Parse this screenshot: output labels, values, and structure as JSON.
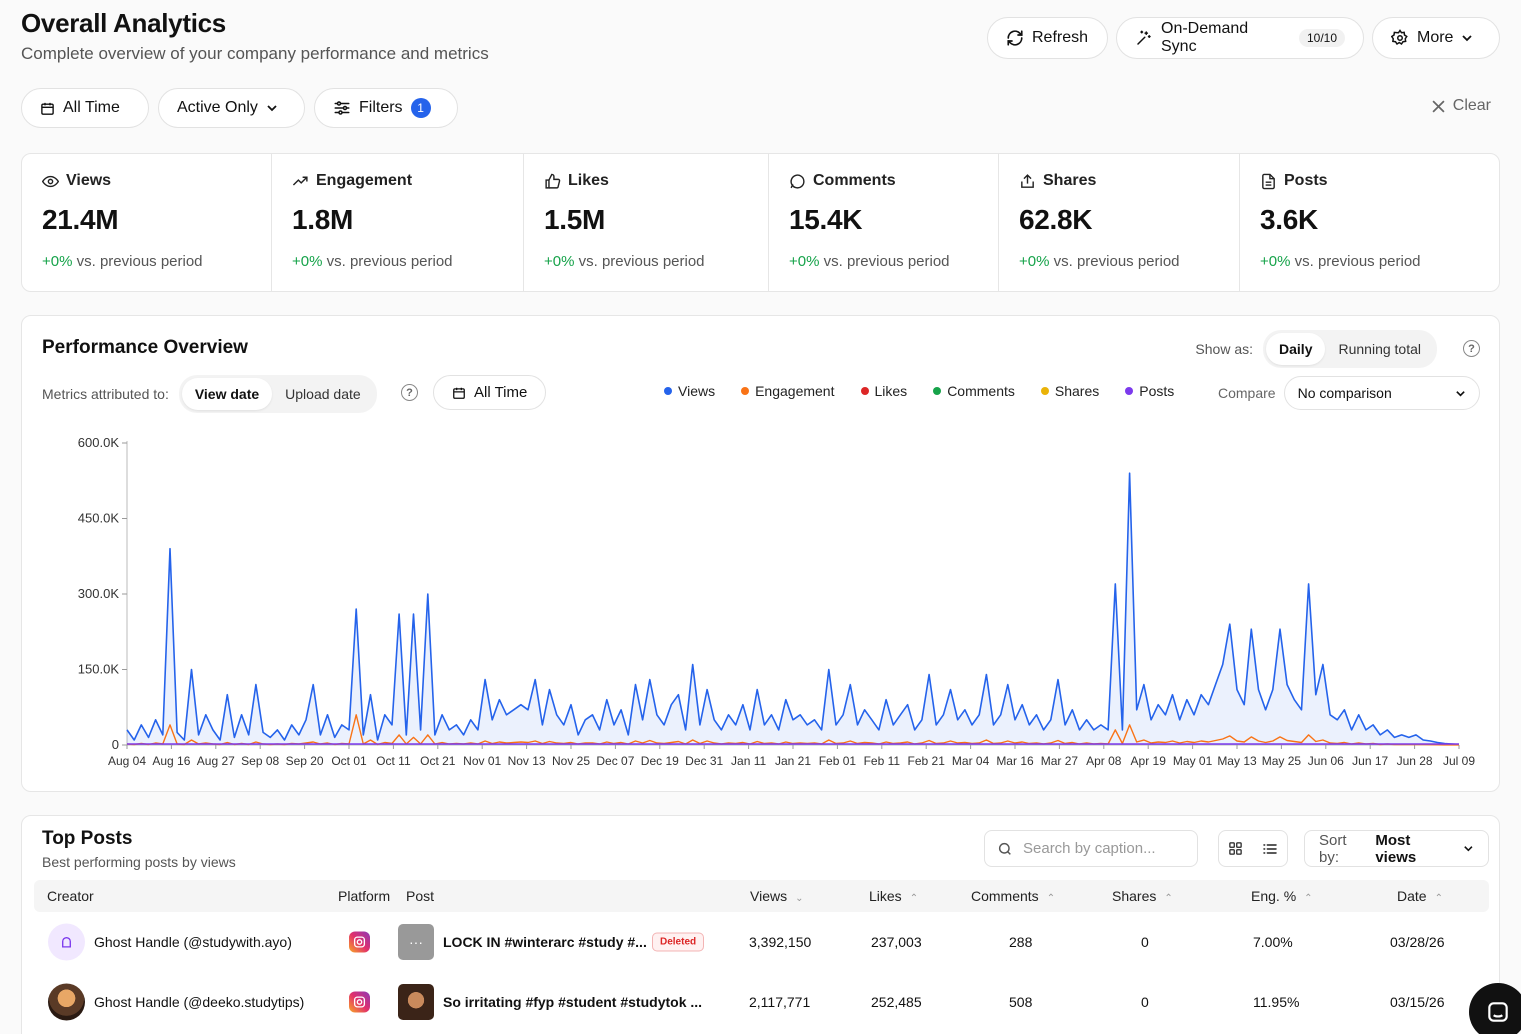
{
  "header": {
    "title": "Overall Analytics",
    "subtitle": "Complete overview of your company performance and metrics",
    "refresh_label": "Refresh",
    "sync_label": "On-Demand Sync",
    "sync_count": "10/10",
    "more_label": "More"
  },
  "filters": {
    "time_label": "All Time",
    "status_label": "Active Only",
    "filters_label": "Filters",
    "filters_count": "1",
    "clear_label": "Clear"
  },
  "stats": [
    {
      "label": "Views",
      "value": "21.4M",
      "change": "+0%",
      "suffix": "vs. previous period"
    },
    {
      "label": "Engagement",
      "value": "1.8M",
      "change": "+0%",
      "suffix": "vs. previous period"
    },
    {
      "label": "Likes",
      "value": "1.5M",
      "change": "+0%",
      "suffix": "vs. previous period"
    },
    {
      "label": "Comments",
      "value": "15.4K",
      "change": "+0%",
      "suffix": "vs. previous period"
    },
    {
      "label": "Shares",
      "value": "62.8K",
      "change": "+0%",
      "suffix": "vs. previous period"
    },
    {
      "label": "Posts",
      "value": "3.6K",
      "change": "+0%",
      "suffix": "vs. previous period"
    }
  ],
  "performance": {
    "title": "Performance Overview",
    "show_as_label": "Show as:",
    "show_as_options": [
      "Daily",
      "Running total"
    ],
    "attributed_label": "Metrics attributed to:",
    "attributed_options": [
      "View date",
      "Upload date"
    ],
    "time_label": "All Time",
    "compare_label": "Compare",
    "compare_value": "No comparison"
  },
  "colors": {
    "views": "#2563eb",
    "engagement": "#f97316",
    "likes": "#dc2626",
    "comments": "#16a34a",
    "shares": "#eab308",
    "posts": "#7c3aed"
  },
  "chart_data": {
    "type": "line",
    "title": "",
    "xlabel": "",
    "ylabel": "",
    "ylim": [
      0,
      600000
    ],
    "y_ticks": [
      "0",
      "150.0K",
      "300.0K",
      "450.0K",
      "600.0K"
    ],
    "x_ticks": [
      "Aug 04",
      "Aug 16",
      "Aug 27",
      "Sep 08",
      "Sep 20",
      "Oct 01",
      "Oct 11",
      "Oct 21",
      "Nov 01",
      "Nov 13",
      "Nov 25",
      "Dec 07",
      "Dec 19",
      "Dec 31",
      "Jan 11",
      "Jan 21",
      "Feb 01",
      "Feb 11",
      "Feb 21",
      "Mar 04",
      "Mar 16",
      "Mar 27",
      "Apr 08",
      "Apr 19",
      "May 01",
      "May 13",
      "May 25",
      "Jun 06",
      "Jun 17",
      "Jun 28",
      "Jul 09"
    ],
    "legend": [
      "Views",
      "Engagement",
      "Likes",
      "Comments",
      "Shares",
      "Posts"
    ],
    "series": [
      {
        "name": "Views",
        "values": [
          30000,
          10000,
          40000,
          15000,
          50000,
          20000,
          390000,
          25000,
          10000,
          150000,
          20000,
          60000,
          30000,
          10000,
          100000,
          15000,
          60000,
          20000,
          120000,
          25000,
          15000,
          30000,
          10000,
          40000,
          20000,
          50000,
          120000,
          20000,
          60000,
          15000,
          40000,
          30000,
          270000,
          20000,
          100000,
          10000,
          60000,
          40000,
          260000,
          20000,
          260000,
          30000,
          300000,
          20000,
          60000,
          30000,
          40000,
          20000,
          50000,
          30000,
          130000,
          50000,
          90000,
          60000,
          70000,
          80000,
          70000,
          130000,
          40000,
          110000,
          60000,
          40000,
          80000,
          20000,
          50000,
          60000,
          30000,
          90000,
          40000,
          70000,
          20000,
          120000,
          50000,
          130000,
          60000,
          40000,
          80000,
          100000,
          30000,
          160000,
          40000,
          110000,
          50000,
          30000,
          60000,
          40000,
          80000,
          30000,
          110000,
          40000,
          60000,
          30000,
          90000,
          50000,
          60000,
          40000,
          50000,
          30000,
          150000,
          40000,
          60000,
          120000,
          40000,
          70000,
          50000,
          30000,
          90000,
          40000,
          60000,
          80000,
          30000,
          50000,
          140000,
          40000,
          60000,
          110000,
          50000,
          70000,
          40000,
          60000,
          140000,
          40000,
          60000,
          120000,
          50000,
          80000,
          40000,
          60000,
          30000,
          50000,
          130000,
          40000,
          70000,
          30000,
          50000,
          30000,
          40000,
          30000,
          320000,
          30000,
          540000,
          70000,
          120000,
          50000,
          80000,
          60000,
          100000,
          50000,
          90000,
          60000,
          100000,
          80000,
          120000,
          160000,
          240000,
          110000,
          80000,
          230000,
          110000,
          70000,
          110000,
          230000,
          120000,
          90000,
          70000,
          320000,
          100000,
          160000,
          60000,
          50000,
          70000,
          30000,
          60000,
          30000,
          40000,
          20000,
          30000,
          15000,
          20000,
          15000,
          20000,
          10000,
          8000,
          5000,
          3000,
          2000,
          1000
        ]
      },
      {
        "name": "Engagement",
        "values": [
          2000,
          1000,
          3000,
          1000,
          4000,
          2000,
          40000,
          2000,
          1000,
          10000,
          2000,
          4000,
          2000,
          1000,
          5000,
          1000,
          3000,
          1000,
          6000,
          2000,
          1000,
          2000,
          1000,
          3000,
          2000,
          4000,
          6000,
          2000,
          4000,
          1000,
          3000,
          2000,
          60000,
          2000,
          10000,
          1000,
          5000,
          3000,
          20000,
          2000,
          15000,
          2000,
          20000,
          2000,
          5000,
          2000,
          3000,
          2000,
          4000,
          2000,
          8000,
          3000,
          6000,
          4000,
          5000,
          6000,
          5000,
          8000,
          3000,
          7000,
          4000,
          3000,
          5000,
          2000,
          4000,
          4000,
          2000,
          6000,
          3000,
          5000,
          2000,
          8000,
          4000,
          9000,
          4000,
          3000,
          5000,
          7000,
          2000,
          10000,
          3000,
          8000,
          4000,
          2000,
          4000,
          3000,
          5000,
          2000,
          7000,
          3000,
          4000,
          2000,
          6000,
          3000,
          4000,
          3000,
          4000,
          2000,
          10000,
          3000,
          4000,
          8000,
          3000,
          5000,
          4000,
          2000,
          6000,
          3000,
          4000,
          6000,
          2000,
          4000,
          9000,
          3000,
          4000,
          8000,
          4000,
          5000,
          3000,
          4000,
          10000,
          3000,
          4000,
          8000,
          4000,
          6000,
          3000,
          4000,
          2000,
          4000,
          9000,
          3000,
          5000,
          2000,
          4000,
          2000,
          3000,
          2000,
          30000,
          3000,
          40000,
          6000,
          10000,
          4000,
          6000,
          5000,
          8000,
          4000,
          7000,
          5000,
          8000,
          6000,
          9000,
          12000,
          18000,
          8000,
          6000,
          16000,
          8000,
          5000,
          8000,
          16000,
          9000,
          7000,
          5000,
          20000,
          7000,
          10000,
          4000,
          3000,
          5000,
          2000,
          4000,
          2000,
          3000,
          1000,
          2000,
          1000,
          1000,
          1000,
          1000,
          1000,
          500,
          300,
          200,
          100,
          100
        ]
      }
    ]
  },
  "top_posts": {
    "title": "Top Posts",
    "subtitle": "Best performing posts by views",
    "search_placeholder": "Search by caption...",
    "sort_label": "Sort by:",
    "sort_value": "Most views",
    "columns": [
      "Creator",
      "Platform",
      "Post",
      "Views",
      "Likes",
      "Comments",
      "Shares",
      "Eng. %",
      "Date"
    ],
    "rows": [
      {
        "creator": "Ghost Handle (@studywith.ayo)",
        "post": "LOCK IN #winterarc #study #...",
        "status": "Deleted",
        "views": "3,392,150",
        "likes": "237,003",
        "comments": "288",
        "shares": "0",
        "eng": "7.00%",
        "date": "03/28/26"
      },
      {
        "creator": "Ghost Handle (@deeko.studytips)",
        "post": "So irritating #fyp #student #studytok ...",
        "status": "",
        "views": "2,117,771",
        "likes": "252,485",
        "comments": "508",
        "shares": "0",
        "eng": "11.95%",
        "date": "03/15/26"
      }
    ]
  }
}
